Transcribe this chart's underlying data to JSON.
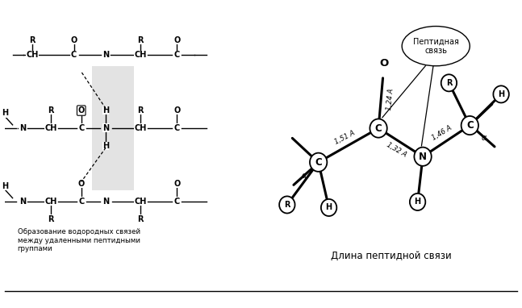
{
  "background": "#ffffff",
  "left_caption": "Образование водородных связей\nмежду удаленными пептидными\nгруппами",
  "right_caption": "Длина пептидной связи",
  "callout_text": "Пептидная\nсвязь",
  "bond_lengths": {
    "C_O": "1,24 А",
    "C_Ca_left": "1,51 А",
    "C_N": "1,32 А",
    "N_Ca_right": "1,46 А"
  }
}
